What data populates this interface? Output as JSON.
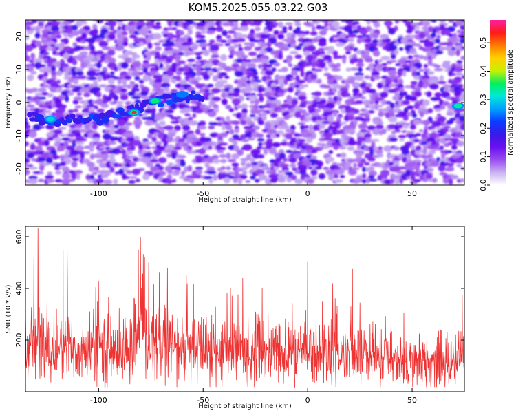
{
  "title": "KOM5.2025.055.03.22.G03",
  "colors": {
    "snr_line": "#ee3333",
    "colorbar": [
      "#ffffff",
      "#c9b2f2",
      "#9a4cf0",
      "#6a10f0",
      "#3a1ae8",
      "#0a3cff",
      "#00a0ff",
      "#00e8d8",
      "#00f060",
      "#c8f000",
      "#ffd000",
      "#ff7a00",
      "#ff1a1a",
      "#ff20a0"
    ]
  },
  "chart_data": [
    {
      "type": "heatmap",
      "xlabel": "Height of straight line (km)",
      "ylabel": "Frequency (Hz)",
      "xlim": [
        -135,
        75
      ],
      "ylim": [
        -25,
        25
      ],
      "x_ticks": [
        "-100",
        "-50",
        "0",
        "50"
      ],
      "x_tick_values": [
        -100,
        -50,
        0,
        50
      ],
      "y_ticks": [
        "-20",
        "-10",
        "0",
        "10",
        "20"
      ],
      "y_tick_values": [
        -20,
        -10,
        0,
        10,
        20
      ],
      "colorbar": {
        "label": "Normalized spectral amplitude",
        "range": [
          0,
          0.58
        ],
        "ticks": [
          "0.0",
          "0.1",
          "0.2",
          "0.3",
          "0.4",
          "0.5"
        ],
        "tick_values": [
          0,
          0.1,
          0.2,
          0.3,
          0.4,
          0.5
        ]
      },
      "ridge": [
        {
          "x": -133,
          "y": -4
        },
        {
          "x": -125,
          "y": -6
        },
        {
          "x": -115,
          "y": -5
        },
        {
          "x": -100,
          "y": -5
        },
        {
          "x": -88,
          "y": -3
        },
        {
          "x": -80,
          "y": -1
        },
        {
          "x": -70,
          "y": 0.5
        },
        {
          "x": -60,
          "y": 2
        },
        {
          "x": -50,
          "y": 2
        }
      ],
      "hot_spots": [
        {
          "x": -83,
          "y": -3,
          "amp": 0.55
        },
        {
          "x": -73,
          "y": 0.5,
          "amp": 0.35
        },
        {
          "x": 72,
          "y": -1,
          "amp": 0.33
        },
        {
          "x": -123,
          "y": -5,
          "amp": 0.3
        },
        {
          "x": -60,
          "y": 2.5,
          "amp": 0.25
        }
      ]
    },
    {
      "type": "line",
      "xlabel": "Height of straight line (km)",
      "ylabel": "SNR (10 * v/v)",
      "xlim": [
        -135,
        75
      ],
      "ylim": [
        0,
        640
      ],
      "x_ticks": [
        "-100",
        "-50",
        "0",
        "50"
      ],
      "x_tick_values": [
        -100,
        -50,
        0,
        50
      ],
      "y_ticks": [
        "200",
        "400",
        "600"
      ],
      "y_tick_values": [
        200,
        400,
        600
      ],
      "series": [
        {
          "x": [
            -135,
            -130,
            -125,
            -120,
            -115,
            -110,
            -105,
            -100,
            -95,
            -90,
            -85,
            -80,
            -75,
            -70,
            -65,
            -60,
            -55,
            -50,
            -45,
            -40,
            -35,
            -30,
            -25,
            -20,
            -15,
            -10,
            -5,
            0,
            5,
            10,
            15,
            20,
            25,
            30,
            35,
            40,
            45,
            50,
            55,
            60,
            65,
            70,
            75
          ],
          "values": [
            140,
            200,
            170,
            160,
            175,
            155,
            150,
            165,
            160,
            150,
            170,
            210,
            190,
            180,
            175,
            165,
            160,
            170,
            155,
            150,
            160,
            150,
            145,
            155,
            150,
            145,
            140,
            160,
            145,
            150,
            140,
            135,
            140,
            130,
            130,
            125,
            120,
            120,
            115,
            110,
            110,
            110,
            160
          ],
          "peaks": [
            {
              "x": -129,
              "y": 635
            },
            {
              "x": -131,
              "y": 520
            },
            {
              "x": -117,
              "y": 550
            },
            {
              "x": -115,
              "y": 550
            },
            {
              "x": -80,
              "y": 600
            },
            {
              "x": -81,
              "y": 550
            },
            {
              "x": -78,
              "y": 520
            },
            {
              "x": -76,
              "y": 500
            },
            {
              "x": -100,
              "y": 430
            },
            {
              "x": -67,
              "y": 480
            },
            {
              "x": -58,
              "y": 450
            },
            {
              "x": -31,
              "y": 440
            },
            {
              "x": 0,
              "y": 505
            },
            {
              "x": 12,
              "y": 420
            },
            {
              "x": 25,
              "y": 345
            },
            {
              "x": 74,
              "y": 375
            }
          ]
        }
      ]
    }
  ]
}
